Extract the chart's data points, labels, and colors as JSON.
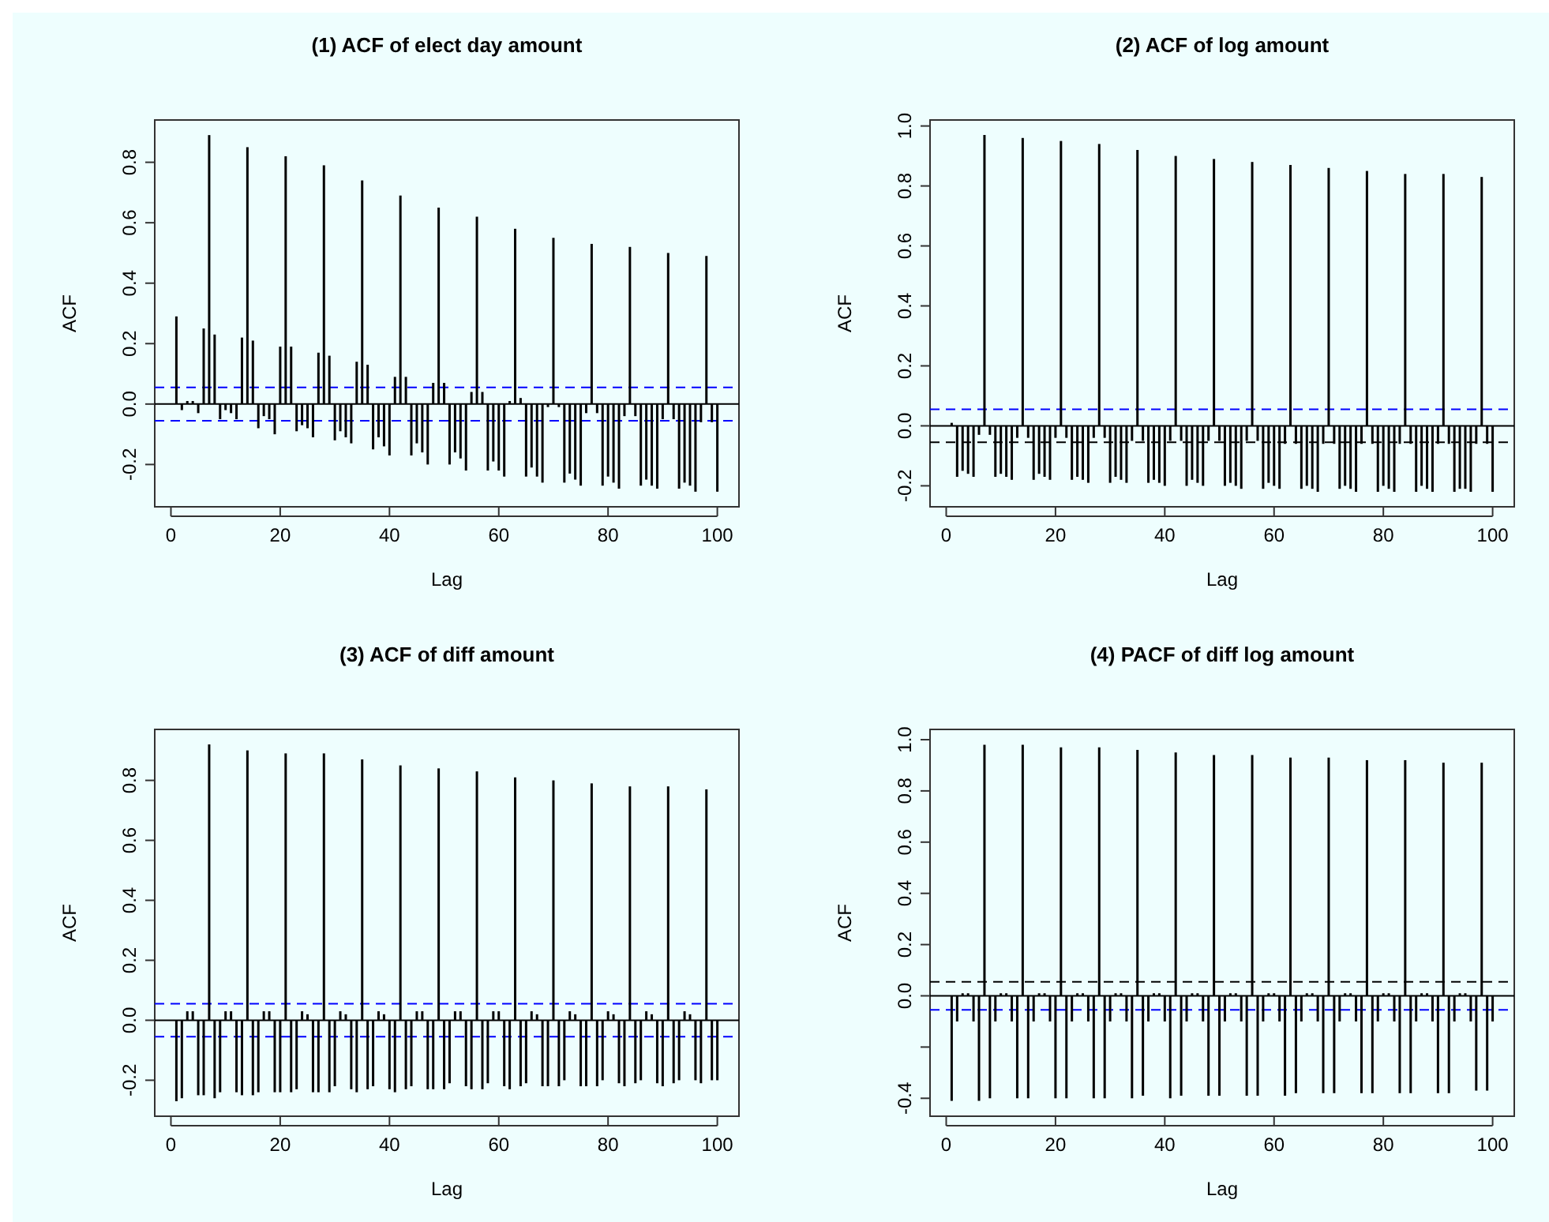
{
  "chart_data": [
    {
      "type": "bar",
      "title": "(1) ACF of elect day amount",
      "xlabel": "Lag",
      "ylabel": "ACF",
      "color": "#000000",
      "x": [
        1,
        2,
        3,
        4,
        5,
        6,
        7,
        8,
        9,
        10,
        11,
        12,
        13,
        14,
        15,
        16,
        17,
        18,
        19,
        20,
        21,
        22,
        23,
        24,
        25,
        26,
        27,
        28,
        29,
        30,
        31,
        32,
        33,
        34,
        35,
        36,
        37,
        38,
        39,
        40,
        41,
        42,
        43,
        44,
        45,
        46,
        47,
        48,
        49,
        50,
        51,
        52,
        53,
        54,
        55,
        56,
        57,
        58,
        59,
        60,
        61,
        62,
        63,
        64,
        65,
        66,
        67,
        68,
        69,
        70,
        71,
        72,
        73,
        74,
        75,
        76,
        77,
        78,
        79,
        80,
        81,
        82,
        83,
        84,
        85,
        86,
        87,
        88,
        89,
        90,
        91,
        92,
        93,
        94,
        95,
        96,
        97,
        98,
        99,
        100
      ],
      "values": [
        0.29,
        -0.02,
        0.01,
        0.01,
        -0.03,
        0.25,
        0.89,
        0.23,
        -0.05,
        -0.02,
        -0.03,
        -0.05,
        0.22,
        0.85,
        0.21,
        -0.08,
        -0.04,
        -0.05,
        -0.1,
        0.19,
        0.82,
        0.19,
        -0.09,
        -0.07,
        -0.08,
        -0.11,
        0.17,
        0.79,
        0.16,
        -0.12,
        -0.09,
        -0.11,
        -0.13,
        0.14,
        0.74,
        0.13,
        -0.15,
        -0.11,
        -0.14,
        -0.17,
        0.09,
        0.69,
        0.09,
        -0.17,
        -0.13,
        -0.16,
        -0.2,
        0.07,
        0.65,
        0.07,
        -0.2,
        -0.16,
        -0.18,
        -0.22,
        0.04,
        0.62,
        0.04,
        -0.22,
        -0.19,
        -0.22,
        -0.24,
        0.01,
        0.58,
        0.02,
        -0.24,
        -0.21,
        -0.24,
        -0.26,
        -0.01,
        0.55,
        -0.01,
        -0.26,
        -0.23,
        -0.25,
        -0.27,
        -0.03,
        0.53,
        -0.03,
        -0.27,
        -0.24,
        -0.26,
        -0.28,
        -0.04,
        0.52,
        -0.04,
        -0.27,
        -0.25,
        -0.27,
        -0.28,
        -0.05,
        0.5,
        -0.05,
        -0.28,
        -0.26,
        -0.27,
        -0.29,
        -0.06,
        0.49,
        -0.06,
        -0.29
      ],
      "xlim": [
        -2.96,
        103.96
      ],
      "xticks": [
        0,
        20,
        40,
        60,
        80,
        100
      ],
      "ylim": [
        -0.34,
        0.94
      ],
      "yticks": [
        -0.2,
        {
          "value": 0,
          "label": "0.0"
        },
        0.2,
        0.4,
        0.6,
        0.8
      ],
      "ref_lines": [
        {
          "axis": "y",
          "value": 0,
          "color": "#000000",
          "line_style": "solid"
        },
        {
          "axis": "y",
          "value": 0.055,
          "color": "#0000ff",
          "line_style": "dashed"
        },
        {
          "axis": "y",
          "value": -0.055,
          "color": "#0000ff",
          "line_style": "dashed"
        }
      ]
    },
    {
      "type": "bar",
      "title": "(2) ACF of log amount",
      "xlabel": "Lag",
      "ylabel": "ACF",
      "color": "#000000",
      "x": [
        1,
        2,
        3,
        4,
        5,
        6,
        7,
        8,
        9,
        10,
        11,
        12,
        13,
        14,
        15,
        16,
        17,
        18,
        19,
        20,
        21,
        22,
        23,
        24,
        25,
        26,
        27,
        28,
        29,
        30,
        31,
        32,
        33,
        34,
        35,
        36,
        37,
        38,
        39,
        40,
        41,
        42,
        43,
        44,
        45,
        46,
        47,
        48,
        49,
        50,
        51,
        52,
        53,
        54,
        55,
        56,
        57,
        58,
        59,
        60,
        61,
        62,
        63,
        64,
        65,
        66,
        67,
        68,
        69,
        70,
        71,
        72,
        73,
        74,
        75,
        76,
        77,
        78,
        79,
        80,
        81,
        82,
        83,
        84,
        85,
        86,
        87,
        88,
        89,
        90,
        91,
        92,
        93,
        94,
        95,
        96,
        97,
        98,
        99,
        100
      ],
      "values": [
        0.01,
        -0.17,
        -0.15,
        -0.16,
        -0.17,
        -0.03,
        0.97,
        -0.03,
        -0.17,
        -0.16,
        -0.17,
        -0.18,
        -0.04,
        0.96,
        -0.04,
        -0.18,
        -0.16,
        -0.17,
        -0.18,
        -0.04,
        0.95,
        -0.04,
        -0.18,
        -0.17,
        -0.18,
        -0.19,
        -0.04,
        0.94,
        -0.04,
        -0.19,
        -0.17,
        -0.18,
        -0.19,
        -0.05,
        0.92,
        -0.05,
        -0.19,
        -0.18,
        -0.19,
        -0.2,
        -0.05,
        0.9,
        -0.05,
        -0.2,
        -0.18,
        -0.19,
        -0.2,
        -0.05,
        0.89,
        -0.05,
        -0.2,
        -0.19,
        -0.2,
        -0.21,
        -0.05,
        0.88,
        -0.05,
        -0.21,
        -0.19,
        -0.2,
        -0.21,
        -0.06,
        0.87,
        -0.06,
        -0.21,
        -0.2,
        -0.21,
        -0.22,
        -0.06,
        0.86,
        -0.06,
        -0.21,
        -0.2,
        -0.21,
        -0.22,
        -0.06,
        0.85,
        -0.06,
        -0.22,
        -0.2,
        -0.21,
        -0.22,
        -0.06,
        0.84,
        -0.06,
        -0.22,
        -0.2,
        -0.21,
        -0.22,
        -0.06,
        0.84,
        -0.06,
        -0.22,
        -0.21,
        -0.21,
        -0.22,
        -0.06,
        0.83,
        -0.06,
        -0.22
      ],
      "xlim": [
        -2.96,
        103.96
      ],
      "xticks": [
        0,
        20,
        40,
        60,
        80,
        100
      ],
      "ylim": [
        -0.27,
        1.02
      ],
      "yticks": [
        -0.2,
        {
          "value": 0,
          "label": "0.0"
        },
        0.2,
        0.4,
        0.6,
        0.8,
        {
          "value": 1,
          "label": "1.0"
        }
      ],
      "ref_lines": [
        {
          "axis": "y",
          "value": 0,
          "color": "#000000",
          "line_style": "solid"
        },
        {
          "axis": "y",
          "value": 0.055,
          "color": "#0000ff",
          "line_style": "dashed"
        },
        {
          "axis": "y",
          "value": -0.055,
          "color": "#000000",
          "line_style": "dashed"
        }
      ]
    },
    {
      "type": "bar",
      "title": "(3) ACF of diff amount",
      "xlabel": "Lag",
      "ylabel": "ACF",
      "color": "#000000",
      "x": [
        1,
        2,
        3,
        4,
        5,
        6,
        7,
        8,
        9,
        10,
        11,
        12,
        13,
        14,
        15,
        16,
        17,
        18,
        19,
        20,
        21,
        22,
        23,
        24,
        25,
        26,
        27,
        28,
        29,
        30,
        31,
        32,
        33,
        34,
        35,
        36,
        37,
        38,
        39,
        40,
        41,
        42,
        43,
        44,
        45,
        46,
        47,
        48,
        49,
        50,
        51,
        52,
        53,
        54,
        55,
        56,
        57,
        58,
        59,
        60,
        61,
        62,
        63,
        64,
        65,
        66,
        67,
        68,
        69,
        70,
        71,
        72,
        73,
        74,
        75,
        76,
        77,
        78,
        79,
        80,
        81,
        82,
        83,
        84,
        85,
        86,
        87,
        88,
        89,
        90,
        91,
        92,
        93,
        94,
        95,
        96,
        97,
        98,
        99,
        100
      ],
      "values": [
        -0.27,
        -0.26,
        0.03,
        0.03,
        -0.25,
        -0.25,
        0.92,
        -0.26,
        -0.24,
        0.03,
        0.03,
        -0.24,
        -0.25,
        0.9,
        -0.25,
        -0.24,
        0.03,
        0.03,
        -0.24,
        -0.24,
        0.89,
        -0.24,
        -0.23,
        0.03,
        0.02,
        -0.24,
        -0.24,
        0.89,
        -0.24,
        -0.22,
        0.03,
        0.02,
        -0.23,
        -0.24,
        0.87,
        -0.23,
        -0.22,
        0.03,
        0.02,
        -0.23,
        -0.24,
        0.85,
        -0.23,
        -0.22,
        0.03,
        0.03,
        -0.23,
        -0.23,
        0.84,
        -0.23,
        -0.21,
        0.03,
        0.03,
        -0.22,
        -0.23,
        0.83,
        -0.23,
        -0.21,
        0.03,
        0.03,
        -0.22,
        -0.23,
        0.81,
        -0.22,
        -0.21,
        0.03,
        0.02,
        -0.22,
        -0.22,
        0.8,
        -0.22,
        -0.2,
        0.03,
        0.02,
        -0.22,
        -0.22,
        0.79,
        -0.22,
        -0.2,
        0.03,
        0.02,
        -0.21,
        -0.22,
        0.78,
        -0.21,
        -0.2,
        0.03,
        0.02,
        -0.21,
        -0.22,
        0.78,
        -0.21,
        -0.2,
        0.03,
        0.02,
        -0.2,
        -0.21,
        0.77,
        -0.2,
        -0.2
      ],
      "xlim": [
        -2.96,
        103.96
      ],
      "xticks": [
        0,
        20,
        40,
        60,
        80,
        100
      ],
      "ylim": [
        -0.32,
        0.97
      ],
      "yticks": [
        -0.2,
        {
          "value": 0,
          "label": "0.0"
        },
        0.2,
        0.4,
        0.6,
        0.8
      ],
      "ref_lines": [
        {
          "axis": "y",
          "value": 0,
          "color": "#000000",
          "line_style": "solid"
        },
        {
          "axis": "y",
          "value": 0.055,
          "color": "#0000ff",
          "line_style": "dashed"
        },
        {
          "axis": "y",
          "value": -0.055,
          "color": "#0000ff",
          "line_style": "dashed"
        }
      ]
    },
    {
      "type": "bar",
      "title": "(4) PACF of diff log amount",
      "xlabel": "Lag",
      "ylabel": "ACF",
      "color": "#000000",
      "x": [
        1,
        2,
        3,
        4,
        5,
        6,
        7,
        8,
        9,
        10,
        11,
        12,
        13,
        14,
        15,
        16,
        17,
        18,
        19,
        20,
        21,
        22,
        23,
        24,
        25,
        26,
        27,
        28,
        29,
        30,
        31,
        32,
        33,
        34,
        35,
        36,
        37,
        38,
        39,
        40,
        41,
        42,
        43,
        44,
        45,
        46,
        47,
        48,
        49,
        50,
        51,
        52,
        53,
        54,
        55,
        56,
        57,
        58,
        59,
        60,
        61,
        62,
        63,
        64,
        65,
        66,
        67,
        68,
        69,
        70,
        71,
        72,
        73,
        74,
        75,
        76,
        77,
        78,
        79,
        80,
        81,
        82,
        83,
        84,
        85,
        86,
        87,
        88,
        89,
        90,
        91,
        92,
        93,
        94,
        95,
        96,
        97,
        98,
        99,
        100
      ],
      "values": [
        -0.41,
        -0.1,
        0.01,
        0.01,
        -0.1,
        -0.41,
        0.98,
        -0.4,
        -0.1,
        0.01,
        0.01,
        -0.1,
        -0.4,
        0.98,
        -0.4,
        -0.1,
        0.01,
        0.01,
        -0.1,
        -0.4,
        0.97,
        -0.4,
        -0.1,
        0.01,
        0.01,
        -0.1,
        -0.4,
        0.97,
        -0.4,
        -0.1,
        0.01,
        0.01,
        -0.1,
        -0.4,
        0.96,
        -0.39,
        -0.1,
        0.01,
        0.01,
        -0.1,
        -0.4,
        0.95,
        -0.39,
        -0.1,
        0.01,
        0.01,
        -0.1,
        -0.39,
        0.94,
        -0.39,
        -0.1,
        0.01,
        0.01,
        -0.1,
        -0.39,
        0.94,
        -0.39,
        -0.1,
        0.01,
        0.01,
        -0.1,
        -0.39,
        0.93,
        -0.38,
        -0.1,
        0.01,
        0.01,
        -0.1,
        -0.38,
        0.93,
        -0.38,
        -0.1,
        0.01,
        0.01,
        -0.1,
        -0.38,
        0.92,
        -0.38,
        -0.1,
        0.01,
        0.01,
        -0.1,
        -0.38,
        0.92,
        -0.38,
        -0.1,
        0.01,
        0.01,
        -0.1,
        -0.38,
        0.91,
        -0.38,
        -0.1,
        0.01,
        0.01,
        -0.1,
        -0.37,
        0.91,
        -0.37,
        -0.1
      ],
      "xlim": [
        -2.96,
        103.96
      ],
      "xticks": [
        0,
        20,
        40,
        60,
        80,
        100
      ],
      "ylim": [
        -0.47,
        1.04
      ],
      "yticks": [
        -0.4,
        {
          "value": -0.2,
          "label": null
        },
        {
          "value": 0,
          "label": "0.0"
        },
        0.2,
        0.4,
        0.6,
        0.8,
        {
          "value": 1,
          "label": "1.0"
        }
      ],
      "ref_lines": [
        {
          "axis": "y",
          "value": 0,
          "color": "#000000",
          "line_style": "solid"
        },
        {
          "axis": "y",
          "value": 0.055,
          "color": "#000000",
          "line_style": "dashed"
        },
        {
          "axis": "y",
          "value": -0.055,
          "color": "#0000ff",
          "line_style": "dashed"
        }
      ]
    }
  ]
}
